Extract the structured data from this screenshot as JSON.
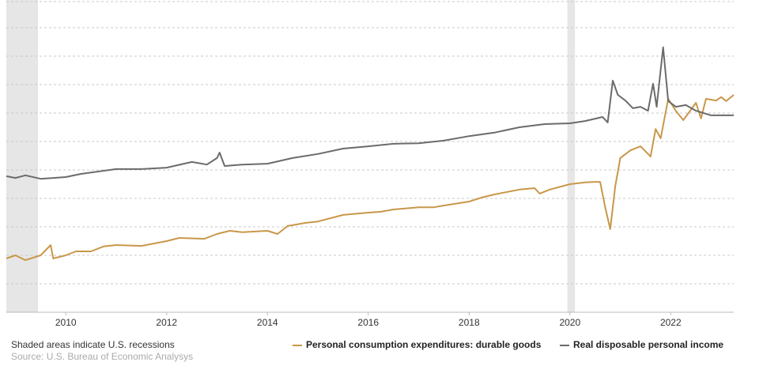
{
  "chart_data": {
    "type": "line",
    "note": "Shaded areas indicate U.S. recessions",
    "source": "Source: U.S. Bureau of Economic Analysys",
    "xlim": [
      2008.82,
      2023.25
    ],
    "ylim": [
      0,
      10
    ],
    "xticks": [
      2010,
      2012,
      2014,
      2016,
      2018,
      2020,
      2022
    ],
    "recessions": [
      [
        2008.82,
        2009.45
      ],
      [
        2019.95,
        2020.1
      ]
    ],
    "recession_color": "#e6e6e6",
    "series": [
      {
        "name": "Personal consumption expenditures: durable goods",
        "color": "#c9974a",
        "x": [
          2008.82,
          2009.0,
          2009.2,
          2009.5,
          2009.7,
          2009.75,
          2010.0,
          2010.2,
          2010.5,
          2010.75,
          2011.0,
          2011.5,
          2012.0,
          2012.25,
          2012.75,
          2013.0,
          2013.25,
          2013.5,
          2014.0,
          2014.2,
          2014.4,
          2014.75,
          2015.0,
          2015.5,
          2016.0,
          2016.25,
          2016.5,
          2017.0,
          2017.3,
          2017.5,
          2018.0,
          2018.25,
          2018.5,
          2019.0,
          2019.3,
          2019.4,
          2019.6,
          2020.0,
          2020.3,
          2020.5,
          2020.6,
          2020.7,
          2020.8,
          2020.9,
          2021.0,
          2021.2,
          2021.4,
          2021.6,
          2021.7,
          2021.8,
          2021.95,
          2022.1,
          2022.25,
          2022.5,
          2022.6,
          2022.7,
          2022.9,
          2023.0,
          2023.1,
          2023.25
        ],
        "values": [
          1.89,
          2.0,
          1.83,
          2.0,
          2.36,
          1.89,
          2.0,
          2.14,
          2.14,
          2.31,
          2.36,
          2.33,
          2.5,
          2.61,
          2.58,
          2.75,
          2.86,
          2.81,
          2.86,
          2.75,
          3.03,
          3.14,
          3.19,
          3.42,
          3.5,
          3.53,
          3.61,
          3.69,
          3.69,
          3.75,
          3.89,
          4.03,
          4.14,
          4.31,
          4.36,
          4.17,
          4.31,
          4.5,
          4.56,
          4.58,
          4.58,
          3.69,
          2.92,
          4.44,
          5.42,
          5.69,
          5.83,
          5.47,
          6.44,
          6.11,
          7.5,
          7.08,
          6.75,
          7.36,
          6.81,
          7.5,
          7.44,
          7.56,
          7.42,
          7.64
        ]
      },
      {
        "name": "Real disposable personal income",
        "color": "#6b6b6b",
        "x": [
          2008.82,
          2009.0,
          2009.2,
          2009.5,
          2010.0,
          2010.3,
          2011.0,
          2011.5,
          2012.0,
          2012.5,
          2012.8,
          2013.0,
          2013.05,
          2013.15,
          2013.5,
          2014.0,
          2014.5,
          2015.0,
          2015.5,
          2016.0,
          2016.5,
          2017.0,
          2017.5,
          2018.0,
          2018.5,
          2019.0,
          2019.5,
          2020.0,
          2020.3,
          2020.65,
          2020.75,
          2020.85,
          2020.95,
          2021.1,
          2021.25,
          2021.4,
          2021.55,
          2021.65,
          2021.72,
          2021.85,
          2021.95,
          2022.1,
          2022.3,
          2022.5,
          2022.8,
          2023.25
        ],
        "values": [
          4.78,
          4.72,
          4.81,
          4.69,
          4.75,
          4.86,
          5.03,
          5.03,
          5.08,
          5.28,
          5.19,
          5.42,
          5.61,
          5.14,
          5.19,
          5.22,
          5.42,
          5.56,
          5.75,
          5.83,
          5.92,
          5.94,
          6.03,
          6.19,
          6.31,
          6.5,
          6.61,
          6.64,
          6.72,
          6.86,
          6.67,
          8.14,
          7.64,
          7.44,
          7.17,
          7.22,
          7.08,
          8.03,
          7.22,
          9.31,
          7.42,
          7.22,
          7.28,
          7.08,
          6.92,
          6.92
        ]
      }
    ]
  }
}
